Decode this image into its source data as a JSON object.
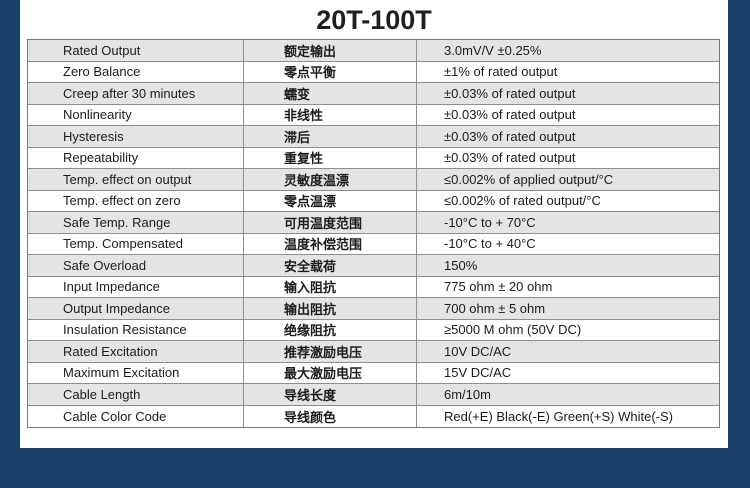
{
  "title": "20T-100T",
  "colors": {
    "navy": "#1A4168",
    "row_alt": "#e4e4e6",
    "row_white": "#ffffff",
    "grid_line": "#8e8e8e",
    "text": "#1c1c1c"
  },
  "table": {
    "columns": [
      "english_name",
      "chinese_name",
      "value"
    ],
    "rows": [
      {
        "en": "Rated Output",
        "zh": "额定输出",
        "value": "3.0mV/V ±0.25%"
      },
      {
        "en": "Zero Balance",
        "zh": "零点平衡",
        "value": "±1% of rated output"
      },
      {
        "en": "Creep after 30 minutes",
        "zh": "蠕变",
        "value": "±0.03% of rated output"
      },
      {
        "en": "Nonlinearity",
        "zh": "非线性",
        "value": "±0.03% of rated output"
      },
      {
        "en": "Hysteresis",
        "zh": "滞后",
        "value": "±0.03% of rated output"
      },
      {
        "en": "Repeatability",
        "zh": "重复性",
        "value": "±0.03% of rated output"
      },
      {
        "en": "Temp. effect on output",
        "zh": "灵敏度温漂",
        "value": "≤0.002% of applied output/°C"
      },
      {
        "en": "Temp. effect on zero",
        "zh": "零点温漂",
        "value": "≤0.002% of rated output/°C"
      },
      {
        "en": "Safe Temp. Range",
        "zh": "可用温度范围",
        "value": "-10°C to + 70°C"
      },
      {
        "en": "Temp. Compensated",
        "zh": "温度补偿范围",
        "value": "-10°C to + 40°C"
      },
      {
        "en": "Safe Overload",
        "zh": "安全载荷",
        "value": "150%"
      },
      {
        "en": "Input Impedance",
        "zh": "输入阻抗",
        "value": "775 ohm ± 20 ohm"
      },
      {
        "en": "Output Impedance",
        "zh": "输出阻抗",
        "value": "700 ohm ± 5 ohm"
      },
      {
        "en": "Insulation Resistance",
        "zh": "绝缘阻抗",
        "value": "≥5000 M ohm (50V DC)"
      },
      {
        "en": "Rated Excitation",
        "zh": "推荐激励电压",
        "value": "10V DC/AC"
      },
      {
        "en": "Maximum Excitation",
        "zh": "最大激励电压",
        "value": "15V DC/AC"
      },
      {
        "en": "Cable Length",
        "zh": "导线长度",
        "value": "6m/10m"
      },
      {
        "en": "Cable Color Code",
        "zh": "导线颜色",
        "value": "Red(+E) Black(-E) Green(+S) White(-S)"
      }
    ]
  }
}
